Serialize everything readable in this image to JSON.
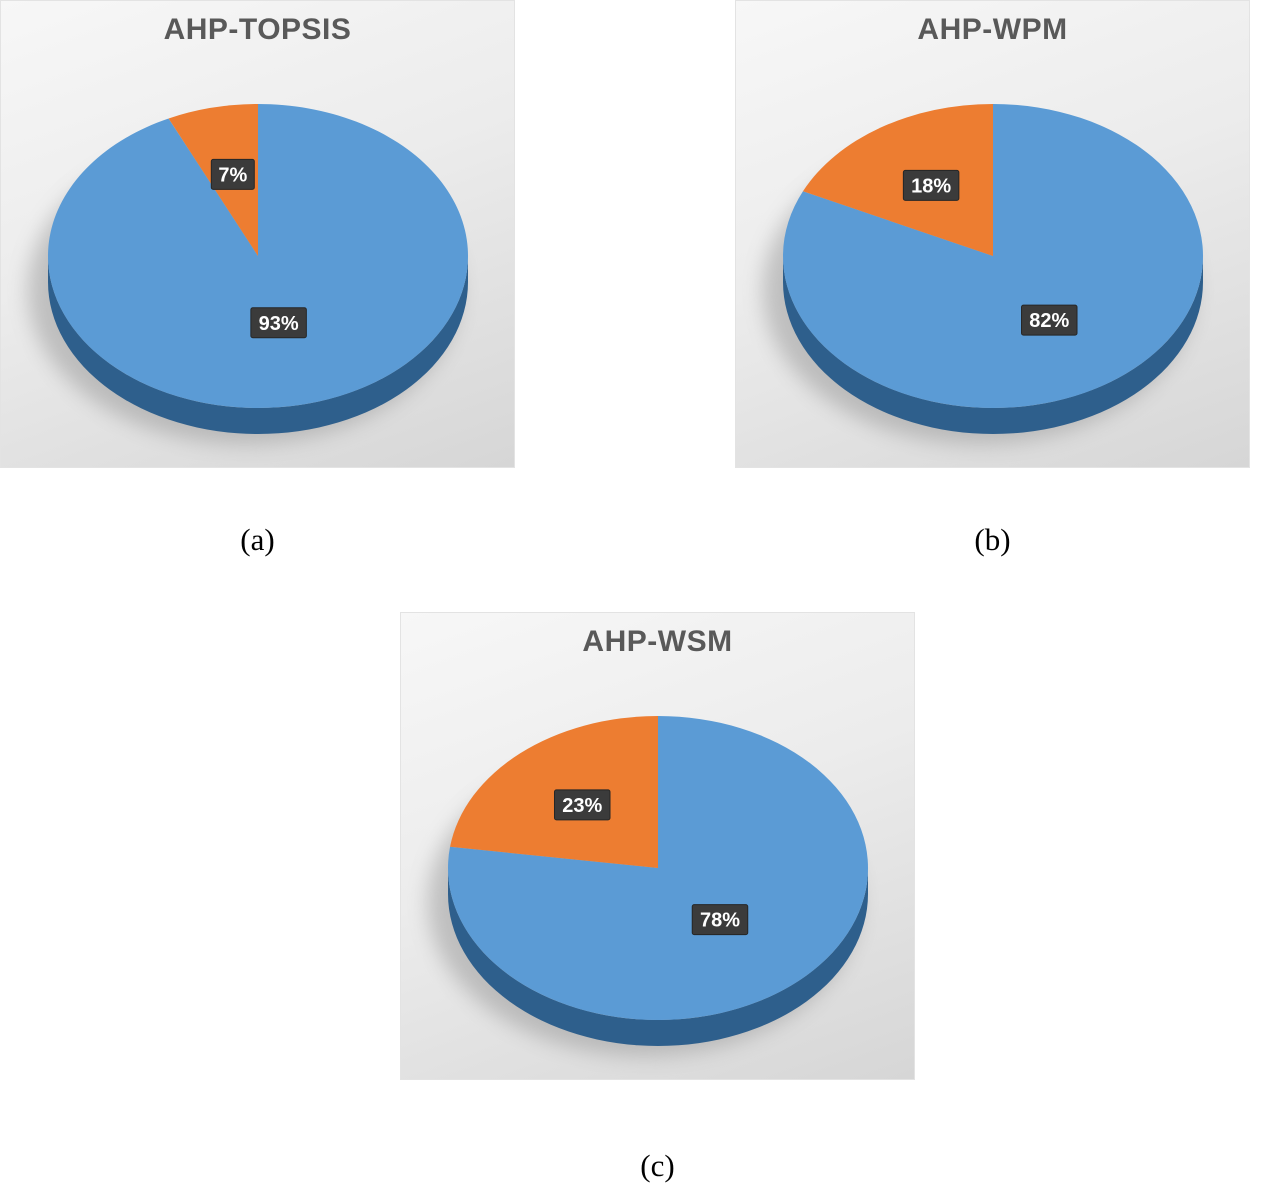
{
  "palette": {
    "blue": "#5b9bd5",
    "blue_depth": "#2e5f8c",
    "orange": "#ed7d31",
    "label_box": "#3b3b3b",
    "label_text": "#ffffff",
    "title_color": "#595959"
  },
  "chart_data": [
    {
      "type": "pie",
      "style": "3d",
      "title": "AHP-TOPSIS",
      "caption": "(a)",
      "labels": [
        "93%",
        "7%"
      ],
      "values": [
        93,
        7
      ],
      "colors": [
        "#5b9bd5",
        "#ed7d31"
      ],
      "depth_color": "#2e5f8c",
      "label_r": [
        0.45,
        0.55
      ],
      "start_angle": "top-clockwise",
      "legend": "none"
    },
    {
      "type": "pie",
      "style": "3d",
      "title": "AHP-WPM",
      "caption": "(b)",
      "labels": [
        "82%",
        "18%"
      ],
      "values": [
        82,
        18
      ],
      "colors": [
        "#5b9bd5",
        "#ed7d31"
      ],
      "depth_color": "#2e5f8c",
      "label_r": [
        0.5,
        0.55
      ],
      "start_angle": "top-clockwise",
      "legend": "none"
    },
    {
      "type": "pie",
      "style": "3d",
      "title": "AHP-WSM",
      "caption": "(c)",
      "labels": [
        "78%",
        "23%"
      ],
      "values": [
        78,
        23
      ],
      "colors": [
        "#5b9bd5",
        "#ed7d31"
      ],
      "depth_color": "#2e5f8c",
      "label_r": [
        0.45,
        0.55
      ],
      "start_angle": "top-clockwise",
      "legend": "none"
    }
  ]
}
